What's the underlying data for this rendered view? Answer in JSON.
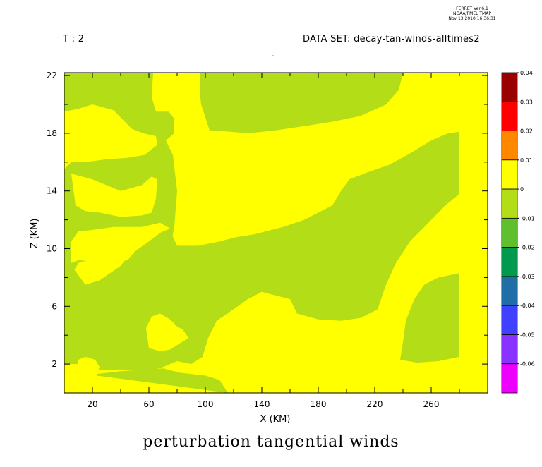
{
  "header": {
    "stamp_lines": [
      "FERRET Ver.6.1",
      "NOAA/PMEL TMAP",
      "Nov 13 2010 16:36:31"
    ],
    "time_label": "T : 2",
    "dataset_label": "DATA SET: decay-tan-winds-alltimes2",
    "dot": "."
  },
  "colors": {
    "green": "#b3dd17",
    "yellow": "#ffff00",
    "border": "#000000"
  },
  "chart_data": {
    "type": "heatmap",
    "title": "perturbation tangential winds",
    "xlabel": "X (KM)",
    "ylabel": "Z (KM)",
    "xlim": [
      0,
      300
    ],
    "ylim": [
      0,
      22.2
    ],
    "x_ticks": [
      "20",
      "60",
      "100",
      "140",
      "180",
      "220",
      "260"
    ],
    "x_tick_values": [
      20,
      60,
      100,
      140,
      180,
      220,
      260
    ],
    "y_ticks": [
      "2",
      "6",
      "10",
      "14",
      "18",
      "22"
    ],
    "y_tick_values": [
      2,
      6,
      10,
      14,
      18,
      22
    ],
    "colorbar": {
      "labels": [
        "0.04",
        "0.03",
        "0.02",
        "0.01",
        "0",
        "-0.01",
        "-0.02",
        "-0.03",
        "-0.04",
        "-0.05",
        "-0.06"
      ],
      "levels": [
        0.04,
        0.03,
        0.02,
        0.01,
        0,
        -0.01,
        -0.02,
        -0.03,
        -0.04,
        -0.05,
        -0.06
      ],
      "colors": [
        "#990000",
        "#ff0000",
        "#ff8800",
        "#ffff00",
        "#b3dd17",
        "#60bf2e",
        "#00994d",
        "#1f6ea8",
        "#4040ff",
        "#8833ff",
        "#ee00ff"
      ]
    },
    "background_range": "0 to 0.01 (yellow)",
    "regions": [
      {
        "name": "region-green-left",
        "range": "-0.01 to 0",
        "points": [
          [
            0,
            22.2
          ],
          [
            63,
            22.2
          ],
          [
            62,
            20.5
          ],
          [
            65,
            19.5
          ],
          [
            74,
            19.5
          ],
          [
            78,
            19
          ],
          [
            78,
            18
          ],
          [
            72,
            17.5
          ],
          [
            77,
            16.5
          ],
          [
            80,
            14
          ],
          [
            78,
            11.5
          ],
          [
            75,
            10
          ],
          [
            70,
            9.5
          ],
          [
            50,
            9.5
          ],
          [
            30,
            9.6
          ],
          [
            10,
            9
          ],
          [
            4,
            8
          ],
          [
            0,
            7.5
          ]
        ]
      },
      {
        "name": "region-green-main",
        "range": "-0.01 to 0",
        "points": [
          [
            0,
            9.5
          ],
          [
            15,
            7.5
          ],
          [
            25,
            7.8
          ],
          [
            40,
            8.8
          ],
          [
            47,
            9.7
          ],
          [
            56,
            10.6
          ],
          [
            62,
            11.5
          ],
          [
            66,
            12.3
          ],
          [
            68,
            12.7
          ],
          [
            80,
            10.2
          ],
          [
            95,
            10.2
          ],
          [
            110,
            10.5
          ],
          [
            122,
            10.8
          ],
          [
            135,
            11
          ],
          [
            155,
            11.5
          ],
          [
            170,
            12
          ],
          [
            180,
            12.5
          ],
          [
            190,
            13
          ],
          [
            196,
            14
          ],
          [
            202,
            14.8
          ],
          [
            215,
            15.3
          ],
          [
            230,
            15.8
          ],
          [
            245,
            16.6
          ],
          [
            260,
            17.5
          ],
          [
            272,
            18
          ],
          [
            280,
            18.1
          ],
          [
            280,
            13.8
          ],
          [
            270,
            13
          ],
          [
            258,
            11.8
          ],
          [
            245,
            10.5
          ],
          [
            235,
            9
          ],
          [
            228,
            7.5
          ],
          [
            222,
            5.8
          ],
          [
            210,
            5.2
          ],
          [
            196,
            5
          ],
          [
            180,
            5.1
          ],
          [
            165,
            5.5
          ],
          [
            160,
            6.5
          ],
          [
            140,
            7
          ],
          [
            130,
            6.5
          ],
          [
            120,
            5.8
          ],
          [
            108,
            5
          ],
          [
            102,
            3.8
          ],
          [
            98,
            2.5
          ],
          [
            90,
            2
          ],
          [
            80,
            2.2
          ],
          [
            70,
            1.8
          ],
          [
            60,
            1.5
          ],
          [
            40,
            1.6
          ],
          [
            20,
            1.6
          ],
          [
            10,
            2
          ],
          [
            0,
            2
          ]
        ]
      },
      {
        "name": "region-green-top",
        "range": "-0.01 to 0",
        "points": [
          [
            96,
            22.2
          ],
          [
            240,
            22.2
          ],
          [
            237,
            21
          ],
          [
            228,
            20
          ],
          [
            210,
            19.2
          ],
          [
            190,
            18.8
          ],
          [
            170,
            18.5
          ],
          [
            150,
            18.2
          ],
          [
            130,
            18
          ],
          [
            118,
            18.1
          ],
          [
            103,
            18.2
          ],
          [
            97,
            20
          ],
          [
            96,
            21
          ]
        ]
      },
      {
        "name": "region-green-lower-right",
        "range": "-0.01 to 0",
        "points": [
          [
            280,
            8.3
          ],
          [
            265,
            8
          ],
          [
            255,
            7.5
          ],
          [
            248,
            6.5
          ],
          [
            242,
            5
          ],
          [
            240,
            3.5
          ],
          [
            238,
            2.3
          ],
          [
            250,
            2.1
          ],
          [
            265,
            2.2
          ],
          [
            280,
            2.5
          ]
        ]
      },
      {
        "name": "region-green-bottom",
        "range": "-0.01 to 0",
        "points": [
          [
            0,
            1.5
          ],
          [
            22,
            1.3
          ],
          [
            40,
            1.5
          ],
          [
            70,
            1.7
          ],
          [
            82,
            1.4
          ],
          [
            100,
            1.2
          ],
          [
            110,
            0.9
          ],
          [
            116,
            0
          ]
        ]
      },
      {
        "name": "region-yellow-left-1",
        "range": "0 to 0.01",
        "points": [
          [
            0,
            19.5
          ],
          [
            10,
            19.7
          ],
          [
            20,
            20
          ],
          [
            35,
            19.6
          ],
          [
            40,
            19.1
          ],
          [
            48,
            18.3
          ],
          [
            56,
            18
          ],
          [
            65,
            17.8
          ],
          [
            66,
            17.2
          ],
          [
            57,
            16.5
          ],
          [
            45,
            16.3
          ],
          [
            30,
            16.2
          ],
          [
            15,
            16
          ],
          [
            5,
            16
          ],
          [
            0,
            15.5
          ]
        ]
      },
      {
        "name": "region-yellow-left-2",
        "range": "0 to 0.01",
        "points": [
          [
            5,
            15.2
          ],
          [
            20,
            14.8
          ],
          [
            40,
            14
          ],
          [
            55,
            14.4
          ],
          [
            62,
            15
          ],
          [
            66,
            14.8
          ],
          [
            65,
            13.5
          ],
          [
            62,
            12.5
          ],
          [
            55,
            12.3
          ],
          [
            40,
            12.2
          ],
          [
            25,
            12.5
          ],
          [
            15,
            12.6
          ],
          [
            8,
            13
          ]
        ]
      },
      {
        "name": "region-yellow-left-3",
        "range": "0 to 0.01",
        "points": [
          [
            5,
            9
          ],
          [
            10,
            9.2
          ],
          [
            25,
            9.1
          ],
          [
            35,
            9
          ],
          [
            45,
            9.2
          ],
          [
            50,
            9.8
          ],
          [
            60,
            10.5
          ],
          [
            68,
            11.1
          ],
          [
            75,
            11.4
          ],
          [
            68,
            11.8
          ],
          [
            55,
            11.5
          ],
          [
            35,
            11.5
          ],
          [
            20,
            11.3
          ],
          [
            10,
            11.2
          ],
          [
            5,
            10.5
          ]
        ]
      },
      {
        "name": "region-yellow-blob-mid",
        "range": "0 to 0.01",
        "points": [
          [
            60,
            3.1
          ],
          [
            58,
            4.5
          ],
          [
            62,
            5.3
          ],
          [
            68,
            5.5
          ],
          [
            75,
            5.1
          ],
          [
            80,
            4.6
          ],
          [
            84,
            4.4
          ],
          [
            88,
            3.8
          ],
          [
            83,
            3.5
          ],
          [
            75,
            3
          ],
          [
            68,
            2.9
          ]
        ]
      },
      {
        "name": "region-yellow-blob-small",
        "range": "0 to 0.01",
        "points": [
          [
            8,
            1.2
          ],
          [
            10,
            2.3
          ],
          [
            15,
            2.5
          ],
          [
            22,
            2.3
          ],
          [
            25,
            1.8
          ],
          [
            22,
            1
          ],
          [
            15,
            0.9
          ]
        ]
      },
      {
        "name": "region-yellow-blob-tiny",
        "range": "0 to 0.01",
        "points": [
          [
            35,
            0.2
          ],
          [
            37,
            0.6
          ],
          [
            42,
            0.6
          ],
          [
            45,
            0.2
          ]
        ]
      }
    ]
  }
}
